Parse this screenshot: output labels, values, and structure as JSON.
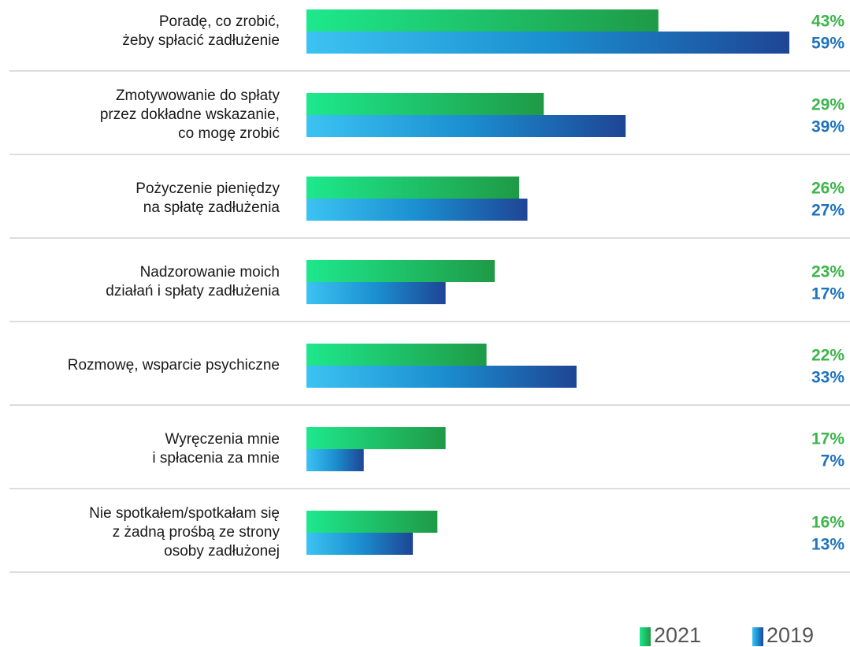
{
  "chart_data": {
    "type": "bar",
    "categories": [
      "Poradę, co zrobić,\nżeby spłacić zadłużenie",
      "Zmotywowanie do spłaty\nprzez dokładne wskazanie,\nco mogę zrobić",
      "Pożyczenie pieniędzy\nna spłatę zadłużenia",
      "Nadzorowanie moich\ndziałań i spłaty zadłużenia",
      "Rozmowę, wsparcie psychiczne",
      "Wyręczenia mnie\ni spłacenia za mnie",
      "Nie spotkałem/spotkałam się\nz żadną prośbą ze strony\nosoby zadłużonej"
    ],
    "series": [
      {
        "name": "2021",
        "color": "#1f9a46",
        "values": [
          43,
          29,
          26,
          23,
          22,
          17,
          16
        ],
        "value_labels": [
          "43%",
          "29%",
          "26%",
          "23%",
          "22%",
          "17%",
          "16%"
        ]
      },
      {
        "name": "2019",
        "color": "#1e4595",
        "values": [
          59,
          39,
          27,
          17,
          33,
          7,
          13
        ],
        "value_labels": [
          "59%",
          "39%",
          "27%",
          "17%",
          "33%",
          "7%",
          "13%"
        ]
      }
    ]
  }
}
